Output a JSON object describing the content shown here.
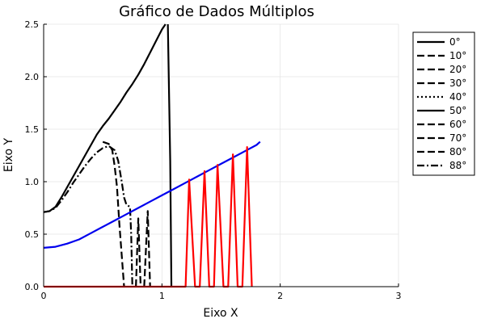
{
  "chart_data": {
    "type": "line",
    "title": "Gráfico de Dados Múltiplos",
    "xlabel": "Eixo X",
    "ylabel": "Eixo Y",
    "xlim": [
      0,
      3
    ],
    "ylim": [
      0,
      2.5
    ],
    "xticks": [
      0,
      1,
      2,
      3
    ],
    "yticks": [
      0.0,
      0.5,
      1.0,
      1.5,
      2.0,
      2.5
    ],
    "xtick_labels": [
      "0",
      "1",
      "2",
      "3"
    ],
    "ytick_labels": [
      "0.0",
      "0.5",
      "1.0",
      "1.5",
      "2.0",
      "2.5"
    ],
    "grid": true,
    "legend_position": "top-right",
    "legend": [
      "0°",
      "10°",
      "20°",
      "30°",
      "40°",
      "50°",
      "60°",
      "70°",
      "80°",
      "88°"
    ],
    "colors": {
      "black": "#000000",
      "blue": "#0000ee",
      "red": "#ff0000",
      "grid": "#e5e5e5"
    },
    "series": [
      {
        "color": "#000000",
        "dash": "solid",
        "points": [
          [
            0,
            0.71
          ],
          [
            0.05,
            0.72
          ],
          [
            0.1,
            0.76
          ],
          [
            0.15,
            0.85
          ],
          [
            0.2,
            0.95
          ],
          [
            0.25,
            1.05
          ],
          [
            0.3,
            1.15
          ],
          [
            0.35,
            1.25
          ],
          [
            0.4,
            1.35
          ],
          [
            0.45,
            1.45
          ],
          [
            0.5,
            1.53
          ],
          [
            0.55,
            1.6
          ],
          [
            0.6,
            1.68
          ],
          [
            0.65,
            1.76
          ],
          [
            0.7,
            1.85
          ],
          [
            0.75,
            1.93
          ],
          [
            0.8,
            2.02
          ],
          [
            0.85,
            2.12
          ],
          [
            0.9,
            2.23
          ],
          [
            0.95,
            2.34
          ],
          [
            1.0,
            2.45
          ],
          [
            1.03,
            2.5
          ]
        ]
      },
      {
        "color": "#000000",
        "dash": "solid",
        "points": [
          [
            1.05,
            2.5
          ],
          [
            1.07,
            1.2
          ],
          [
            1.08,
            0.0
          ]
        ]
      },
      {
        "color": "#000000",
        "dash": "dashdot",
        "points": [
          [
            0,
            0.71
          ],
          [
            0.05,
            0.72
          ],
          [
            0.1,
            0.75
          ],
          [
            0.15,
            0.82
          ],
          [
            0.2,
            0.9
          ],
          [
            0.25,
            0.99
          ],
          [
            0.3,
            1.07
          ],
          [
            0.35,
            1.15
          ],
          [
            0.4,
            1.22
          ],
          [
            0.45,
            1.28
          ],
          [
            0.5,
            1.32
          ],
          [
            0.55,
            1.34
          ],
          [
            0.6,
            1.3
          ],
          [
            0.63,
            1.2
          ],
          [
            0.66,
            1.0
          ],
          [
            0.68,
            0.85
          ],
          [
            0.7,
            0.78
          ],
          [
            0.73,
            0.76
          ],
          [
            0.74,
            0.5
          ],
          [
            0.75,
            0.0
          ]
        ]
      },
      {
        "color": "#000000",
        "dash": "dash",
        "points": [
          [
            0.5,
            1.38
          ],
          [
            0.55,
            1.36
          ],
          [
            0.58,
            1.3
          ],
          [
            0.6,
            1.15
          ],
          [
            0.62,
            0.95
          ],
          [
            0.64,
            0.6
          ],
          [
            0.66,
            0.3
          ],
          [
            0.68,
            0.0
          ]
        ]
      },
      {
        "color": "#000000",
        "dash": "dash",
        "points": [
          [
            0.78,
            0.0
          ],
          [
            0.8,
            0.65
          ],
          [
            0.82,
            0.0
          ]
        ]
      },
      {
        "color": "#000000",
        "dash": "dash",
        "points": [
          [
            0.85,
            0.0
          ],
          [
            0.88,
            0.72
          ],
          [
            0.9,
            0.0
          ]
        ]
      },
      {
        "color": "#0000ee",
        "dash": "solid",
        "points": [
          [
            0,
            0.37
          ],
          [
            0.1,
            0.38
          ],
          [
            0.2,
            0.41
          ],
          [
            0.3,
            0.45
          ],
          [
            0.4,
            0.51
          ],
          [
            0.5,
            0.57
          ],
          [
            0.6,
            0.63
          ],
          [
            0.7,
            0.69
          ],
          [
            0.8,
            0.75
          ],
          [
            0.9,
            0.81
          ],
          [
            1.0,
            0.87
          ],
          [
            1.1,
            0.93
          ],
          [
            1.2,
            0.99
          ],
          [
            1.3,
            1.05
          ],
          [
            1.4,
            1.11
          ],
          [
            1.5,
            1.17
          ],
          [
            1.6,
            1.23
          ],
          [
            1.7,
            1.29
          ],
          [
            1.8,
            1.35
          ],
          [
            1.83,
            1.38
          ]
        ]
      },
      {
        "color": "#ff0000",
        "dash": "solid",
        "points": [
          [
            0,
            0.0
          ],
          [
            1.2,
            0.0
          ],
          [
            1.23,
            1.02
          ],
          [
            1.28,
            0.0
          ],
          [
            1.32,
            0.0
          ],
          [
            1.36,
            1.1
          ],
          [
            1.4,
            0.0
          ],
          [
            1.44,
            0.0
          ],
          [
            1.47,
            1.16
          ],
          [
            1.52,
            0.0
          ],
          [
            1.56,
            0.0
          ],
          [
            1.6,
            1.26
          ],
          [
            1.64,
            0.0
          ],
          [
            1.68,
            0.0
          ],
          [
            1.72,
            1.33
          ],
          [
            1.76,
            0.0
          ]
        ]
      }
    ]
  }
}
